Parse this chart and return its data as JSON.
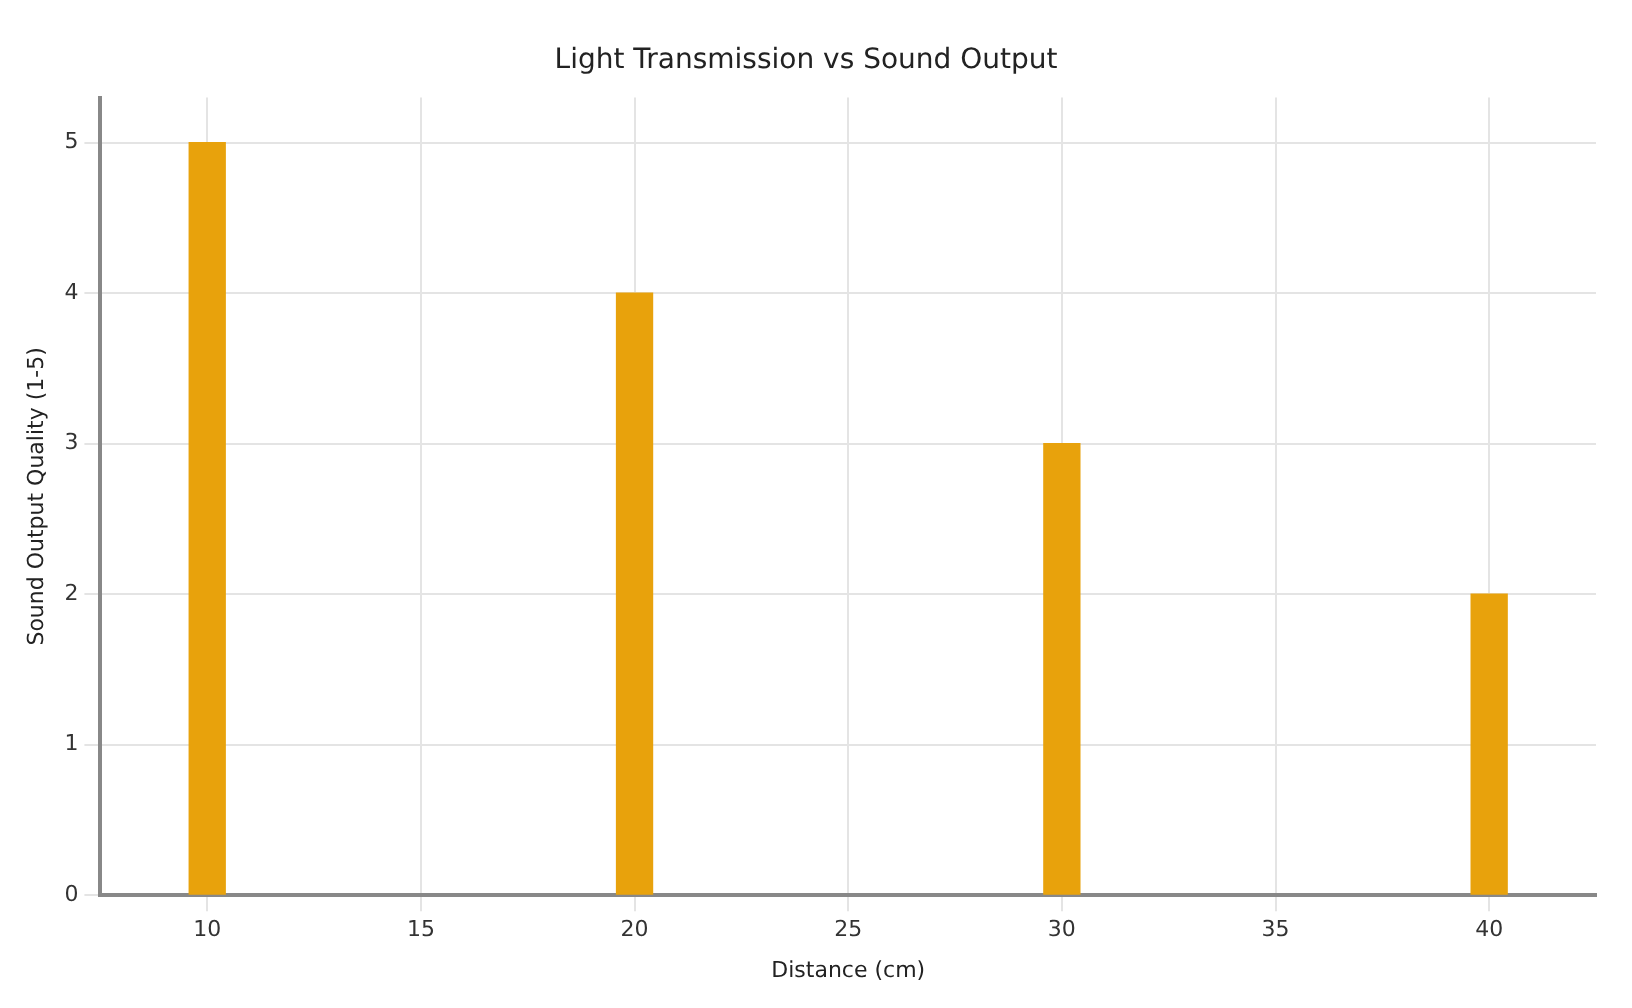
{
  "chart_data": {
    "type": "bar",
    "title": "Light Transmission vs Sound Output",
    "xlabel": "Distance (cm)",
    "ylabel": "Sound Output Quality (1-5)",
    "x": [
      10,
      20,
      30,
      40
    ],
    "values": [
      5,
      4,
      3,
      2
    ],
    "color": "#e8a20c",
    "xlim": [
      7.5,
      42.5
    ],
    "xticks": [
      10,
      15,
      20,
      25,
      30,
      35,
      40
    ],
    "ylim": [
      0,
      5.3
    ],
    "yticks": [
      0,
      1,
      2,
      3,
      4,
      5
    ],
    "grid": true
  }
}
